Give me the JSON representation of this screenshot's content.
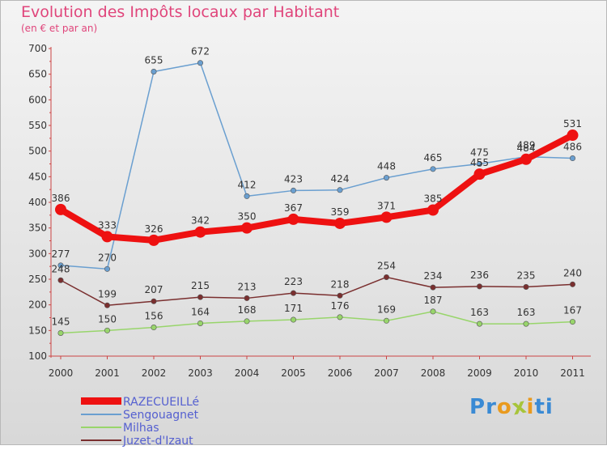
{
  "title": "Evolution des Impôts locaux par Habitant",
  "subtitle": "(en € et par an)",
  "brand": {
    "letters": [
      "P",
      "r",
      "o",
      "x",
      "i",
      "t",
      "i"
    ],
    "colors": [
      "#3a8ad4",
      "#3a8ad4",
      "#e99a1e",
      "#a7c43a",
      "#e99a1e",
      "#3a8ad4",
      "#3a8ad4"
    ]
  },
  "chart_data": {
    "type": "line",
    "title": "Evolution des Impôts locaux par Habitant",
    "subtitle": "(en € et par an)",
    "categories": [
      "2000",
      "2001",
      "2002",
      "2003",
      "2004",
      "2005",
      "2006",
      "2007",
      "2008",
      "2009",
      "2010",
      "2011"
    ],
    "ylim": [
      100,
      700
    ],
    "yticks": [
      "100",
      "150",
      "200",
      "250",
      "300",
      "350",
      "400",
      "450",
      "500",
      "550",
      "600",
      "650",
      "700"
    ],
    "series": [
      {
        "name": "RAZECUEILLé",
        "color": "#ee1111",
        "emphasis": true,
        "values": [
          386,
          333,
          326,
          342,
          350,
          367,
          359,
          371,
          385,
          455,
          484,
          531
        ]
      },
      {
        "name": "Sengouagnet",
        "color": "#6a9fd0",
        "emphasis": false,
        "values": [
          277,
          270,
          655,
          672,
          412,
          423,
          424,
          448,
          465,
          475,
          489,
          486
        ]
      },
      {
        "name": "Milhas",
        "color": "#98d56b",
        "emphasis": false,
        "values": [
          145,
          150,
          156,
          164,
          168,
          171,
          176,
          169,
          187,
          163,
          163,
          167
        ]
      },
      {
        "name": "Juzet-d'Izaut",
        "color": "#7a2f2f",
        "emphasis": false,
        "values": [
          248,
          199,
          207,
          215,
          213,
          223,
          218,
          254,
          234,
          236,
          235,
          240
        ]
      }
    ],
    "legend_position": "bottom-left",
    "grid": false
  }
}
